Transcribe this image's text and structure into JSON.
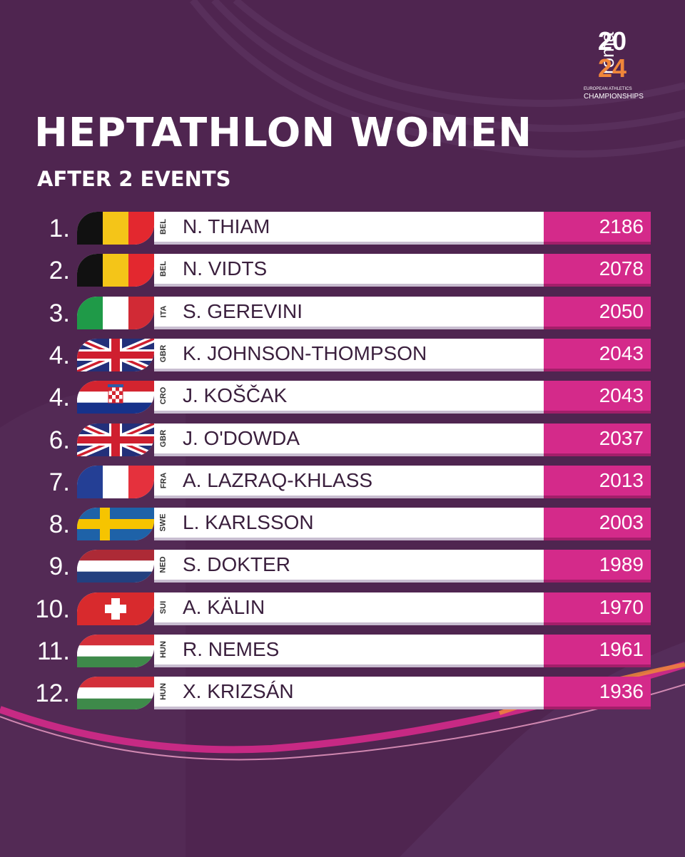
{
  "header": {
    "title": "HEPTATHLON WOMEN",
    "subtitle": "AFTER 2 EVENTS"
  },
  "logo": {
    "city": "roma",
    "year_top": "20",
    "year_bottom": "24",
    "small_text": "EUROPEAN ATHLETICS",
    "caption": "CHAMPIONSHIPS"
  },
  "colors": {
    "background": "#4f2550",
    "score_bar": "#d42a8a",
    "name_bar": "#ffffff"
  },
  "standings": [
    {
      "rank": "1.",
      "country": "BEL",
      "flag": "belgium-flag",
      "name": "N. THIAM",
      "points": "2186"
    },
    {
      "rank": "2.",
      "country": "BEL",
      "flag": "belgium-flag",
      "name": "N. VIDTS",
      "points": "2078"
    },
    {
      "rank": "3.",
      "country": "ITA",
      "flag": "italy-flag",
      "name": "S. GEREVINI",
      "points": "2050"
    },
    {
      "rank": "4.",
      "country": "GBR",
      "flag": "uk-flag",
      "name": "K. JOHNSON-THOMPSON",
      "points": "2043"
    },
    {
      "rank": "4.",
      "country": "CRO",
      "flag": "croatia-flag",
      "name": "J. KOŠČAK",
      "points": "2043"
    },
    {
      "rank": "6.",
      "country": "GBR",
      "flag": "uk-flag",
      "name": "J. O'DOWDA",
      "points": "2037"
    },
    {
      "rank": "7.",
      "country": "FRA",
      "flag": "france-flag",
      "name": "A. LAZRAQ-KHLASS",
      "points": "2013"
    },
    {
      "rank": "8.",
      "country": "SWE",
      "flag": "sweden-flag",
      "name": "L. KARLSSON",
      "points": "2003"
    },
    {
      "rank": "9.",
      "country": "NED",
      "flag": "netherlands-flag",
      "name": "S. DOKTER",
      "points": "1989"
    },
    {
      "rank": "10.",
      "country": "SUI",
      "flag": "switzerland-flag",
      "name": "A. KÄLIN",
      "points": "1970"
    },
    {
      "rank": "11.",
      "country": "HUN",
      "flag": "hungary-flag",
      "name": "R. NEMES",
      "points": "1961"
    },
    {
      "rank": "12.",
      "country": "HUN",
      "flag": "hungary-flag",
      "name": "X. KRIZSÁN",
      "points": "1936"
    }
  ]
}
